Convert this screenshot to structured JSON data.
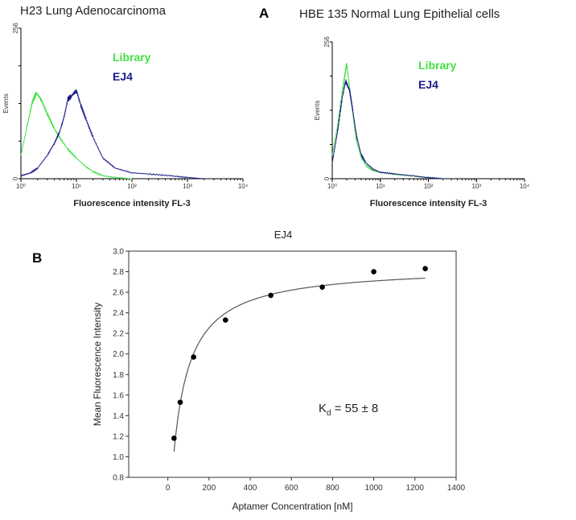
{
  "panel_labels": {
    "a": "A",
    "b": "B"
  },
  "colors": {
    "library": "#44e044",
    "ej4": "#1a1a8c",
    "fit": "#555555",
    "points": "#000000"
  },
  "chart_data": [
    {
      "type": "line",
      "title": "H23 Lung Adenocarcinoma",
      "xlabel": "Fluorescence intensity FL-3",
      "ylabel": "Events",
      "xscale": "log",
      "xlim": [
        1,
        10000
      ],
      "ylim": [
        0,
        256
      ],
      "x_tick_labels": [
        "10⁰",
        "10¹",
        "10²",
        "10³",
        "10⁴"
      ],
      "y_tick_labels": [
        "0",
        "256"
      ],
      "legend": [
        "Library",
        "EJ4"
      ],
      "legend_placement": "top-center",
      "series": [
        {
          "name": "Library",
          "x": [
            1,
            1.3,
            1.6,
            1.9,
            2.3,
            3,
            4,
            5,
            7,
            10,
            15,
            20,
            30,
            50,
            100
          ],
          "y": [
            40,
            90,
            130,
            146,
            135,
            110,
            85,
            70,
            50,
            35,
            20,
            12,
            5,
            2,
            0
          ]
        },
        {
          "name": "EJ4",
          "x": [
            1,
            1.5,
            2,
            3,
            4,
            5,
            6,
            7,
            8,
            10,
            12,
            15,
            20,
            30,
            50,
            100,
            200,
            500,
            1000,
            2000
          ],
          "y": [
            5,
            10,
            18,
            40,
            60,
            80,
            105,
            135,
            140,
            150,
            125,
            100,
            70,
            35,
            18,
            10,
            8,
            5,
            2,
            0
          ]
        }
      ]
    },
    {
      "type": "line",
      "title": "HBE 135  Normal Lung Epithelial cells",
      "xlabel": "Fluorescence intensity FL-3",
      "ylabel": "Events",
      "xscale": "log",
      "xlim": [
        1,
        10000
      ],
      "ylim": [
        0,
        256
      ],
      "x_tick_labels": [
        "10⁰",
        "10¹",
        "10²",
        "10³",
        "10⁴"
      ],
      "y_tick_labels": [
        "0",
        "256"
      ],
      "legend": [
        "Library",
        "EJ4"
      ],
      "legend_placement": "top-center",
      "series": [
        {
          "name": "Library",
          "x": [
            1,
            1.3,
            1.6,
            2,
            2.3,
            2.7,
            3.2,
            4,
            5,
            7,
            10,
            20,
            50,
            100,
            200
          ],
          "y": [
            45,
            100,
            160,
            216,
            170,
            120,
            70,
            40,
            25,
            15,
            12,
            8,
            5,
            2,
            0
          ]
        },
        {
          "name": "EJ4",
          "x": [
            1,
            1.3,
            1.6,
            1.9,
            2.3,
            2.7,
            3.2,
            4,
            5,
            7,
            10,
            20,
            50,
            100,
            200
          ],
          "y": [
            30,
            90,
            150,
            183,
            165,
            125,
            80,
            45,
            30,
            18,
            12,
            9,
            5,
            2,
            0
          ]
        }
      ]
    },
    {
      "type": "scatter",
      "title": "EJ4",
      "xlabel": "Aptamer Concentration [nM]",
      "ylabel": "Mean Fluorescence Intensity",
      "xlim": [
        -190,
        1400
      ],
      "ylim": [
        0.8,
        3.0
      ],
      "x_ticks": [
        0,
        200,
        400,
        600,
        800,
        1000,
        1200,
        1400
      ],
      "y_ticks": [
        0.8,
        1.0,
        1.2,
        1.4,
        1.6,
        1.8,
        2.0,
        2.2,
        2.4,
        2.6,
        2.8,
        3.0
      ],
      "points": {
        "x": [
          30,
          60,
          125,
          280,
          500,
          750,
          1000,
          1250
        ],
        "y": [
          1.18,
          1.53,
          1.97,
          2.33,
          2.57,
          2.65,
          2.8,
          2.83
        ]
      },
      "fit": {
        "model": "one-site binding",
        "Kd": 55,
        "Bmax": 2.79,
        "offset": 0.065,
        "x_range": [
          30,
          1250
        ]
      },
      "annotation": {
        "main": "K",
        "sub": "d",
        "rest": " = 55 ± 8"
      }
    }
  ]
}
